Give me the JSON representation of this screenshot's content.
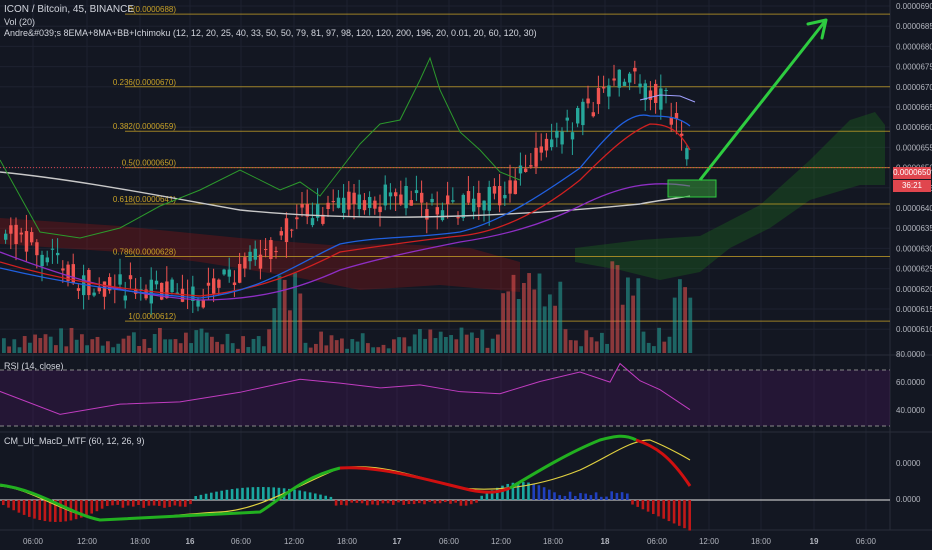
{
  "header": {
    "symbol_line": "ICON / Bitcoin, 45, BINANCE",
    "vol_line": "Vol (20)",
    "indicator_line": "Andre&#039;s 8EMA+8MA+BB+Ichimoku (12, 12, 20, 25, 40, 33, 50, 50, 79, 81, 97, 98, 120, 120, 200, 196, 20, 0.01, 20, 60, 120, 30)"
  },
  "rsi": {
    "title": "RSI (14, close)",
    "labels": [
      "80.0000",
      "60.0000",
      "40.0000"
    ]
  },
  "macd": {
    "title": "CM_Ult_MacD_MTF (60, 12, 26, 9)",
    "labels": [
      "0.0000",
      "0.0000"
    ]
  },
  "price_axis": {
    "labels": [
      "0.0000690",
      "0.0000685",
      "0.0000680",
      "0.0000675",
      "0.0000670",
      "0.0000665",
      "0.0000660",
      "0.0000655",
      "0.0000650",
      "0.0000645",
      "0.0000640",
      "0.0000635",
      "0.0000630",
      "0.0000625",
      "0.0000620",
      "0.0000615",
      "0.0000610"
    ],
    "current_price": "0.0000650",
    "countdown": "36:21",
    "current_color": "#e0464e"
  },
  "time_axis": [
    "06:00",
    "12:00",
    "18:00",
    "16",
    "06:00",
    "12:00",
    "18:00",
    "17",
    "06:00",
    "12:00",
    "18:00",
    "18",
    "06:00",
    "12:00",
    "18:00",
    "19",
    "06:00"
  ],
  "fib_levels": [
    {
      "label": "0(0.0000688)",
      "price": 6.88e-05
    },
    {
      "label": "0.236(0.0000670)",
      "price": 6.7e-05
    },
    {
      "label": "0.382(0.0000659)",
      "price": 6.59e-05
    },
    {
      "label": "0.5(0.0000650)",
      "price": 6.5e-05
    },
    {
      "label": "0.618(0.0000641)",
      "price": 6.41e-05
    },
    {
      "label": "0.786(0.0000628)",
      "price": 6.28e-05
    },
    {
      "label": "1(0.0000612)",
      "price": 6.12e-05
    }
  ],
  "colors": {
    "background": "#131722",
    "up": "#26a69a",
    "down": "#ef5350",
    "fib": "#c9a227",
    "arrow": "#2ecc40",
    "rsi_line": "#c03cc0",
    "macd_up": "#22b020",
    "macd_down": "#d01010",
    "signal": "#e0d040"
  },
  "icons": {
    "arrow": "green-up-arrow-annotation",
    "box": "green-target-box"
  }
}
